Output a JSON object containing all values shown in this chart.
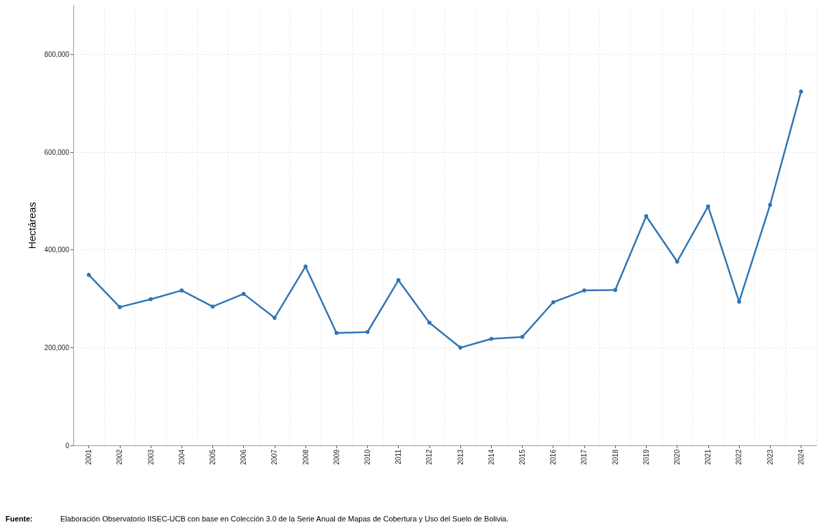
{
  "chart_data": {
    "type": "line",
    "ylabel": "Hectáreas",
    "categories": [
      "2001",
      "2002",
      "2003",
      "2004",
      "2005",
      "2006",
      "2007",
      "2008",
      "2009",
      "2010",
      "2011",
      "2012",
      "2013",
      "2014",
      "2015",
      "2016",
      "2017",
      "2018",
      "2019",
      "2020",
      "2021",
      "2022",
      "2023",
      "2024"
    ],
    "series": [
      {
        "color": "#2e75b6",
        "values": [
          349000,
          283000,
          299000,
          317000,
          284000,
          310000,
          261000,
          366000,
          230000,
          232000,
          338000,
          251000,
          200000,
          218000,
          222000,
          293000,
          317000,
          318000,
          469000,
          376000,
          489000,
          294000,
          492000,
          724000
        ]
      }
    ],
    "ylim": [
      0,
      900000
    ],
    "yticks": [
      {
        "value": 0,
        "label": "0"
      },
      {
        "value": 200000,
        "label": "200,000"
      },
      {
        "value": 400000,
        "label": "400,000"
      },
      {
        "value": 600000,
        "label": "600,000"
      },
      {
        "value": 800000,
        "label": "800,000"
      }
    ],
    "grid": true,
    "marker": "circle",
    "line_style": "solid",
    "annotations": [
      "Fuente:",
      "Elaboración Observatorio IISEC-UCB con base en Colección 3.0 de la Serie Anual de Mapas de Cobertura y Uso del Suelo de Bolivia."
    ]
  }
}
